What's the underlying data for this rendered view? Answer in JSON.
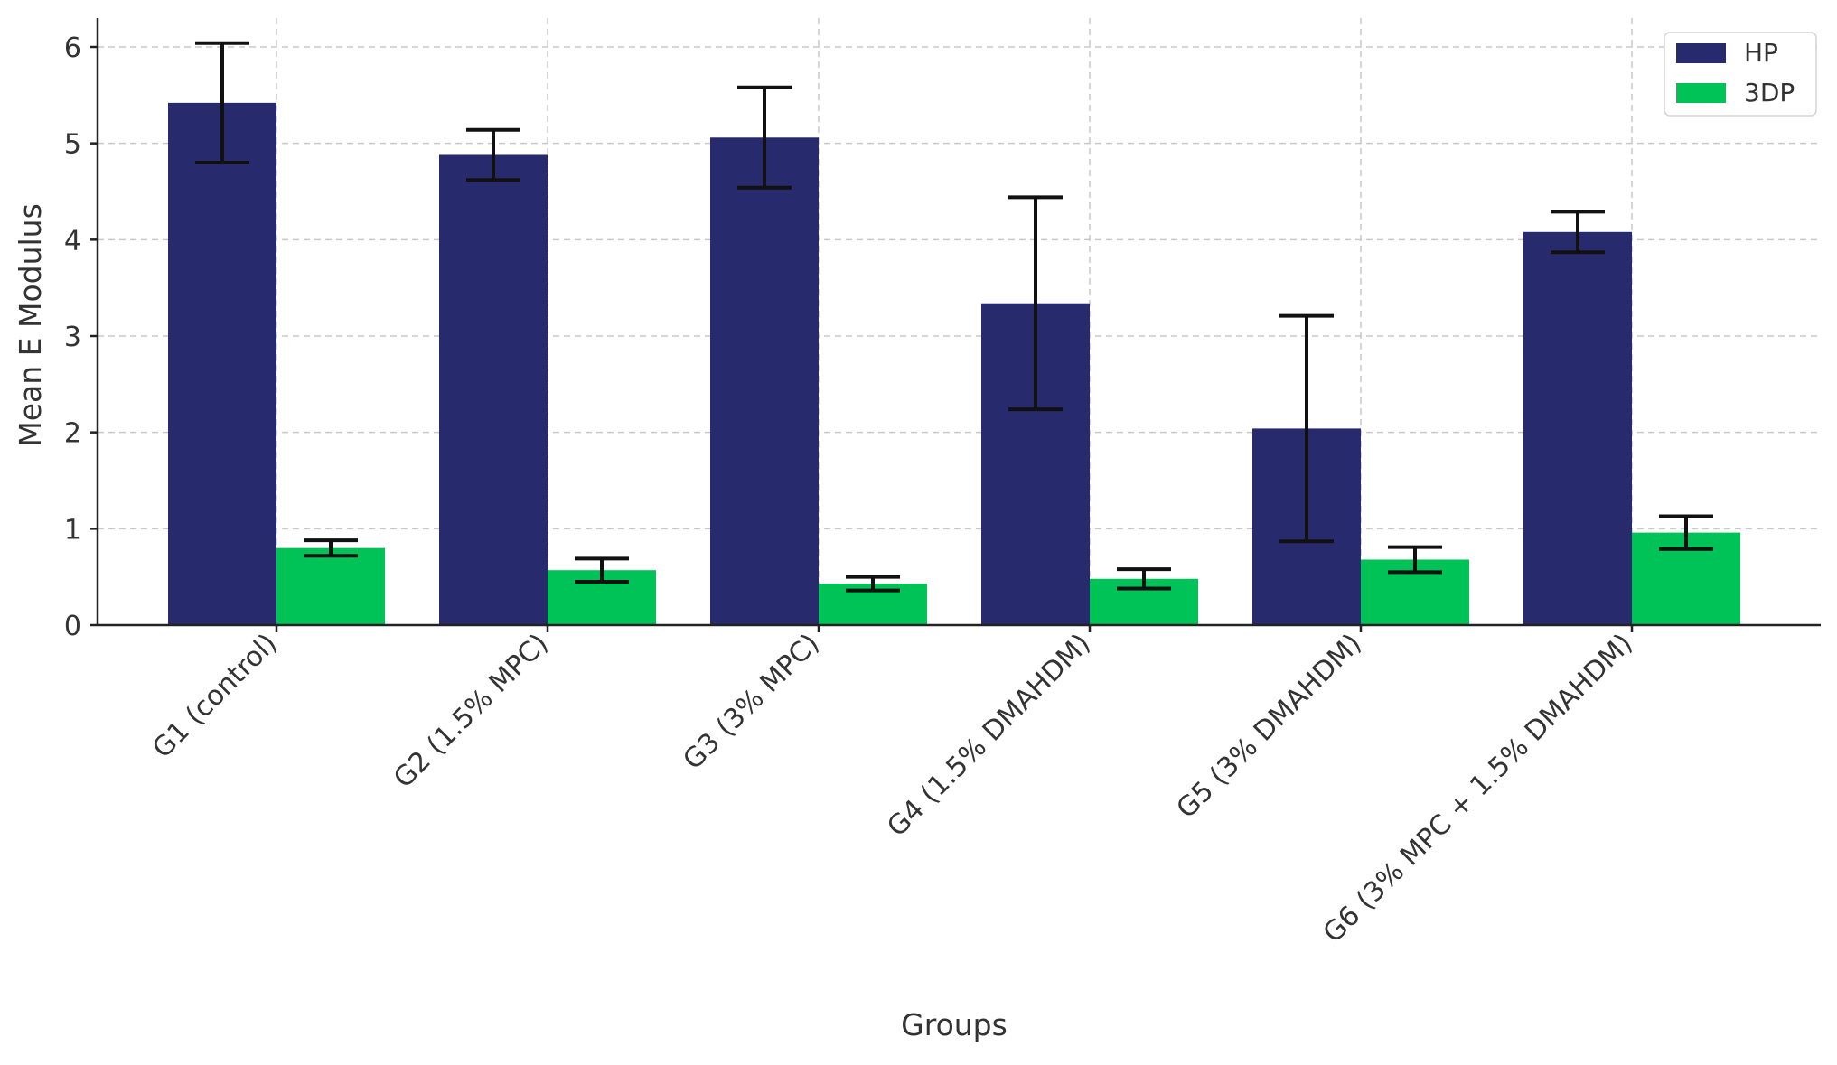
{
  "chart_data": {
    "type": "bar",
    "title": "",
    "xlabel": "Groups",
    "ylabel": "Mean E Modulus",
    "ylim": [
      0,
      6.3
    ],
    "yticks": [
      0,
      1,
      2,
      3,
      4,
      5,
      6
    ],
    "grid": true,
    "legend_position": "top-right",
    "categories": [
      "G1 (control)",
      "G2 (1.5% MPC)",
      "G3 (3% MPC)",
      "G4 (1.5% DMAHDM)",
      "G5 (3% DMAHDM)",
      "G6 (3% MPC + 1.5% DMAHDM)"
    ],
    "series": [
      {
        "name": "HP",
        "color": "#272a6c",
        "values": [
          5.42,
          4.88,
          5.06,
          3.34,
          2.04,
          4.08
        ],
        "errors": [
          0.62,
          0.26,
          0.52,
          1.1,
          1.17,
          0.21
        ]
      },
      {
        "name": "3DP",
        "color": "#00c357",
        "values": [
          0.8,
          0.57,
          0.43,
          0.48,
          0.68,
          0.96
        ],
        "errors": [
          0.08,
          0.12,
          0.07,
          0.1,
          0.13,
          0.17
        ]
      }
    ]
  }
}
